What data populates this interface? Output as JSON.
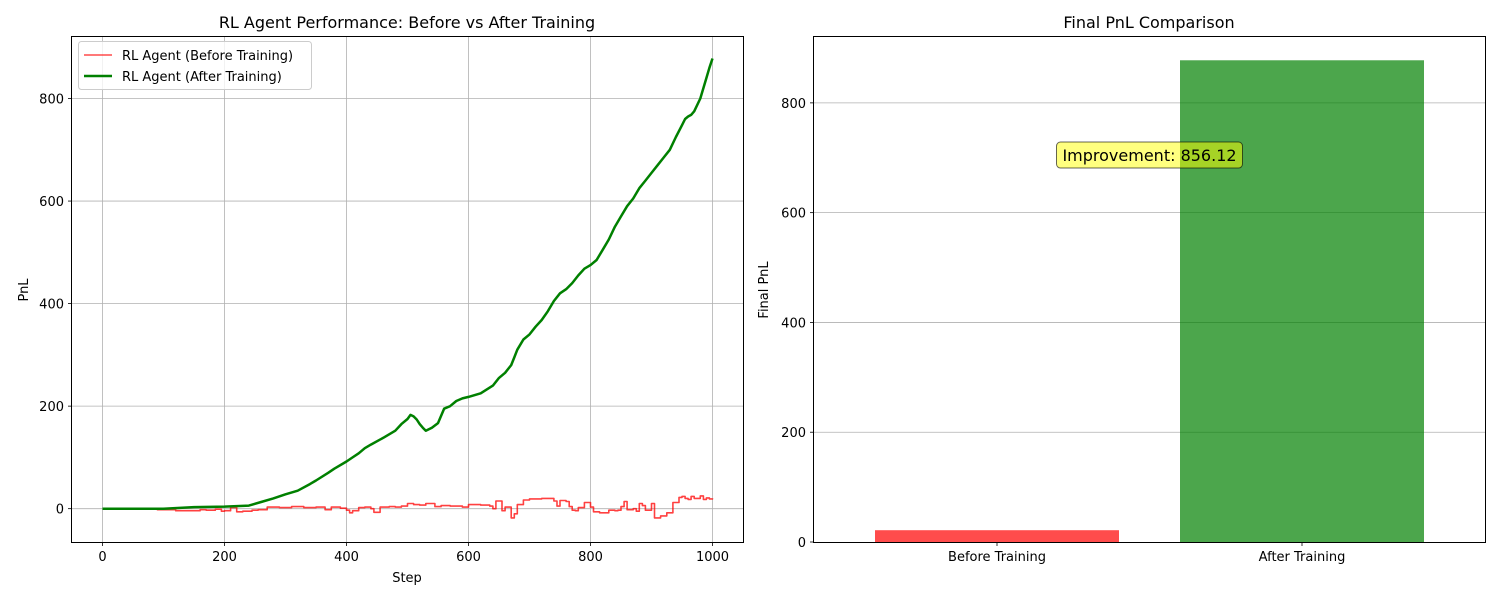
{
  "chart_data": [
    {
      "type": "line",
      "title": "RL Agent Performance: Before vs After Training",
      "xlabel": "Step",
      "ylabel": "PnL",
      "xlim": [
        -50,
        1050
      ],
      "ylim": [
        -65,
        920
      ],
      "xticks": [
        0,
        200,
        400,
        600,
        800,
        1000
      ],
      "yticks": [
        0,
        200,
        400,
        600,
        800
      ],
      "grid": true,
      "legend": "top-left",
      "series": [
        {
          "name": "RL Agent (Before Training)",
          "color": "#ff0000",
          "x": [
            0,
            50,
            90,
            110,
            120,
            150,
            160,
            170,
            185,
            195,
            200,
            210,
            220,
            230,
            245,
            255,
            270,
            290,
            310,
            330,
            350,
            365,
            375,
            390,
            400,
            405,
            410,
            420,
            430,
            440,
            445,
            455,
            470,
            480,
            490,
            500,
            510,
            520,
            530,
            545,
            555,
            570,
            580,
            590,
            600,
            620,
            635,
            640,
            645,
            655,
            660,
            670,
            675,
            680,
            690,
            700,
            720,
            730,
            740,
            745,
            750,
            760,
            765,
            770,
            775,
            780,
            790,
            800,
            805,
            815,
            830,
            840,
            845,
            850,
            855,
            860,
            870,
            875,
            880,
            885,
            890,
            900,
            905,
            915,
            925,
            935,
            945,
            950,
            955,
            960,
            965,
            970,
            980,
            985,
            990,
            995,
            1000
          ],
          "y": [
            0,
            0,
            -2,
            -2,
            -4,
            -4,
            -2,
            -3,
            -1,
            -5,
            -4,
            2,
            -6,
            -5,
            -3,
            -2,
            3,
            2,
            4,
            2,
            3,
            -2,
            3,
            1,
            -3,
            -8,
            -4,
            2,
            3,
            0,
            -7,
            3,
            4,
            3,
            5,
            10,
            8,
            7,
            10,
            4,
            6,
            5,
            5,
            3,
            8,
            7,
            5,
            0,
            15,
            -4,
            3,
            -18,
            -10,
            8,
            17,
            19,
            20,
            20,
            15,
            5,
            16,
            14,
            4,
            -3,
            -4,
            2,
            12,
            3,
            -6,
            -8,
            -3,
            -4,
            -3,
            4,
            14,
            -2,
            0,
            -5,
            10,
            6,
            -3,
            10,
            -18,
            -14,
            -8,
            12,
            22,
            24,
            20,
            18,
            24,
            20,
            25,
            18,
            21,
            19,
            20
          ]
        },
        {
          "name": "RL Agent (After Training)",
          "color": "#008000",
          "x": [
            0,
            50,
            100,
            150,
            200,
            240,
            260,
            280,
            300,
            320,
            340,
            350,
            370,
            380,
            400,
            410,
            420,
            430,
            440,
            460,
            470,
            480,
            490,
            500,
            505,
            510,
            515,
            520,
            525,
            530,
            540,
            550,
            560,
            570,
            580,
            590,
            600,
            620,
            640,
            650,
            660,
            670,
            675,
            680,
            690,
            700,
            710,
            720,
            730,
            740,
            750,
            760,
            770,
            780,
            790,
            800,
            810,
            820,
            830,
            840,
            850,
            860,
            870,
            880,
            890,
            900,
            910,
            920,
            930,
            940,
            950,
            955,
            960,
            965,
            970,
            980,
            990,
            995,
            1000
          ],
          "y": [
            0,
            0,
            0,
            3,
            4,
            6,
            13,
            20,
            28,
            35,
            48,
            55,
            70,
            78,
            92,
            100,
            108,
            118,
            125,
            138,
            145,
            152,
            165,
            175,
            183,
            180,
            174,
            165,
            158,
            152,
            158,
            167,
            195,
            200,
            210,
            215,
            218,
            225,
            240,
            255,
            265,
            280,
            295,
            310,
            330,
            340,
            355,
            368,
            385,
            405,
            420,
            428,
            440,
            455,
            468,
            475,
            485,
            505,
            525,
            550,
            570,
            590,
            605,
            625,
            640,
            655,
            670,
            685,
            700,
            725,
            748,
            760,
            765,
            768,
            775,
            800,
            840,
            860,
            878
          ]
        }
      ]
    },
    {
      "type": "bar",
      "title": "Final PnL Comparison",
      "xlabel": "",
      "ylabel": "Final PnL",
      "categories": [
        "Before Training",
        "After Training"
      ],
      "values": [
        21.5,
        877.6
      ],
      "colors": [
        "#ff0000",
        "#008000"
      ],
      "ylim": [
        0,
        920
      ],
      "yticks": [
        0,
        200,
        400,
        600,
        800
      ],
      "grid": true,
      "annotation": {
        "text": "Improvement: 856.12",
        "x": 0.5,
        "y": 705
      }
    }
  ]
}
